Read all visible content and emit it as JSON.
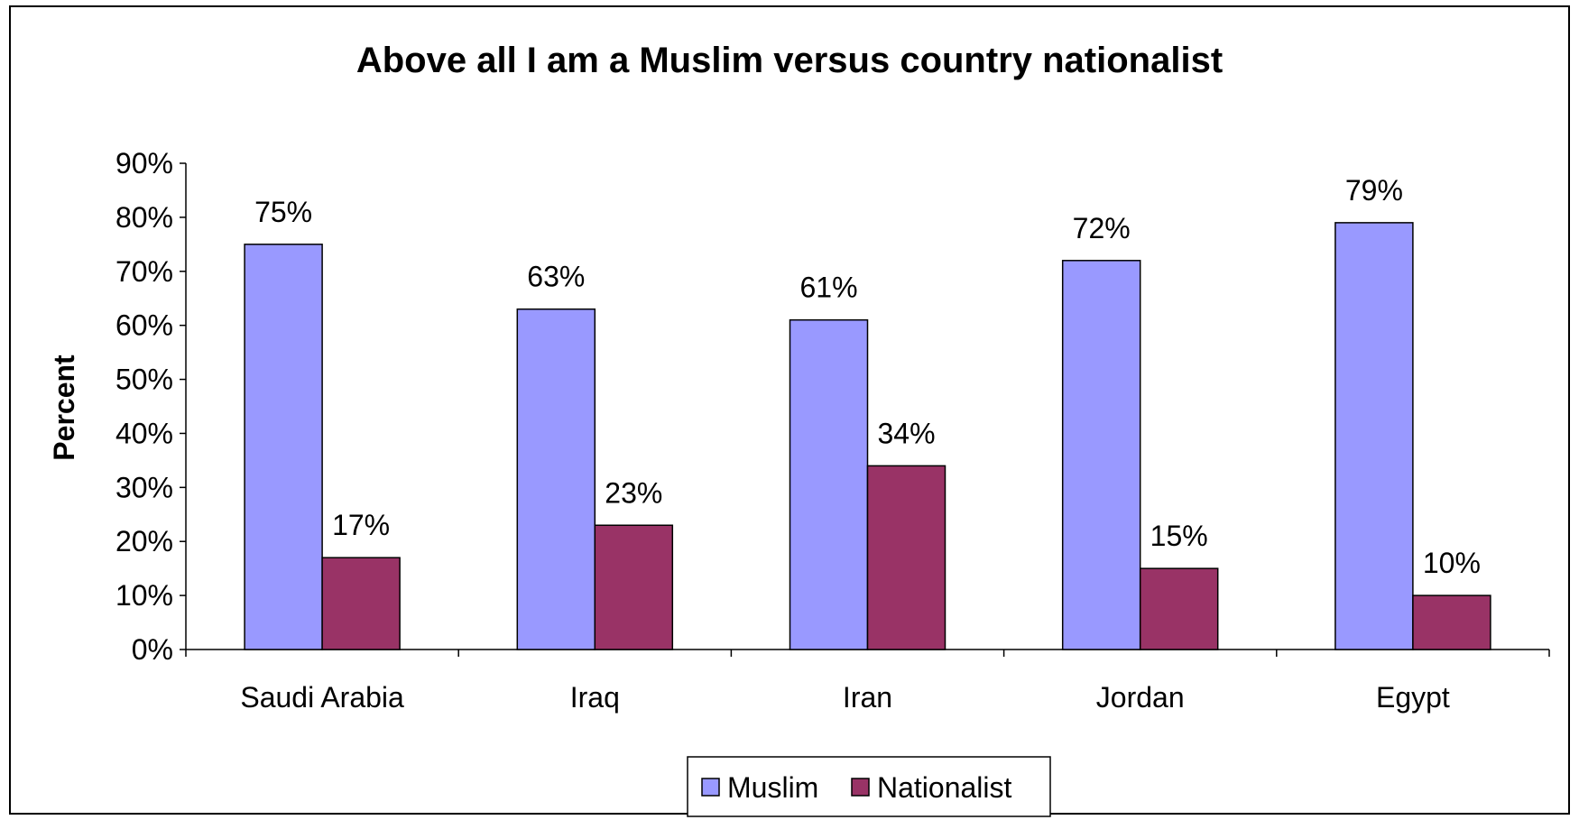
{
  "chart_data": {
    "type": "bar",
    "title": "Above all I am a Muslim versus country nationalist",
    "xlabel": "",
    "ylabel": "Percent",
    "categories": [
      "Saudi Arabia",
      "Iraq",
      "Iran",
      "Jordan",
      "Egypt"
    ],
    "series": [
      {
        "name": "Muslim",
        "values": [
          75,
          63,
          61,
          72,
          79
        ],
        "labels": [
          "75%",
          "63%",
          "61%",
          "72%",
          "79%"
        ],
        "color": "#9999FF"
      },
      {
        "name": "Nationalist",
        "values": [
          17,
          23,
          34,
          15,
          10
        ],
        "labels": [
          "17%",
          "23%",
          "34%",
          "15%",
          "10%"
        ],
        "color": "#993366"
      }
    ],
    "ylim": [
      0,
      90
    ],
    "yticks": [
      0,
      10,
      20,
      30,
      40,
      50,
      60,
      70,
      80,
      90
    ],
    "ytick_labels": [
      "0%",
      "10%",
      "20%",
      "30%",
      "40%",
      "50%",
      "60%",
      "70%",
      "80%",
      "90%"
    ],
    "grid": false,
    "legend": "bottom"
  }
}
